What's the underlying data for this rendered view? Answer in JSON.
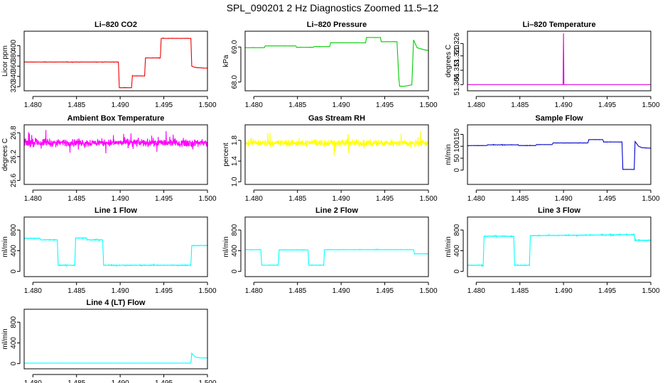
{
  "title": "SPL_090201  2 Hz Diagnostics Zoomed 11.5–12",
  "chart_data": [
    {
      "type": "line",
      "title": "Li–820 CO2",
      "ylabel": "Licor ppm",
      "color": "#ee0000",
      "xlim": [
        1.479,
        1.5
      ],
      "ylim": [
        312,
        428
      ],
      "xticks": [
        "1.480",
        "1.485",
        "1.490",
        "1.495",
        "1.500"
      ],
      "yticks": [
        "320",
        "340",
        "360",
        "380",
        "400"
      ],
      "x": [
        1.479,
        1.4898,
        1.4899,
        1.4913,
        1.4914,
        1.4928,
        1.4929,
        1.4946,
        1.4947,
        1.4981,
        1.4982,
        1.4985,
        1.4988,
        1.5
      ],
      "y": [
        368,
        368,
        318,
        318,
        341,
        341,
        376,
        376,
        414,
        414,
        360,
        358,
        357,
        356
      ],
      "noise": 0.8
    },
    {
      "type": "line",
      "title": "Li–820 Pressure",
      "ylabel": "kPa",
      "color": "#00cc00",
      "xlim": [
        1.479,
        1.5
      ],
      "ylim": [
        67.75,
        69.45
      ],
      "xticks": [
        "1.480",
        "1.485",
        "1.490",
        "1.495",
        "1.500"
      ],
      "yticks": [
        "68.0",
        "69.0"
      ],
      "x": [
        1.479,
        1.4812,
        1.4813,
        1.4848,
        1.4849,
        1.4868,
        1.4869,
        1.4887,
        1.4888,
        1.4928,
        1.4929,
        1.4945,
        1.4946,
        1.4964,
        1.4966,
        1.4967,
        1.4973,
        1.4981,
        1.4983,
        1.4987,
        1.4995,
        1.5
      ],
      "y": [
        68.98,
        68.98,
        69.03,
        69.03,
        68.99,
        68.99,
        69.01,
        69.01,
        69.12,
        69.12,
        69.27,
        69.27,
        69.15,
        69.15,
        68.15,
        67.88,
        67.88,
        67.92,
        69.2,
        68.98,
        68.92,
        68.9
      ],
      "noise": 0.006
    },
    {
      "type": "line",
      "title": "Li–820 Temperature",
      "ylabel": "degrees C",
      "color": "#dd00dd",
      "xlim": [
        1.479,
        1.5
      ],
      "ylim": [
        51.303,
        51.332
      ],
      "xticks": [
        "1.480",
        "1.485",
        "1.490",
        "1.495",
        "1.500"
      ],
      "yticks": [
        "51.306",
        "51.313",
        "51.320",
        "51.326"
      ],
      "x": [
        1.479,
        1.48995,
        1.49,
        1.49005,
        1.5
      ],
      "y": [
        51.306,
        51.306,
        51.331,
        51.306,
        51.306
      ],
      "noise": 0
    },
    {
      "type": "line",
      "title": "Ambient Box Temperature",
      "ylabel": "degrees C",
      "color": "#ff00ff",
      "xlim": [
        1.479,
        1.5
      ],
      "ylim": [
        25.5,
        27.0
      ],
      "xticks": [
        "1.480",
        "1.485",
        "1.490",
        "1.495",
        "1.500"
      ],
      "yticks": [
        "25.6",
        "26.2",
        "26.8"
      ],
      "x": [
        1.479,
        1.5
      ],
      "y": [
        26.55,
        26.55
      ],
      "noise": 0.32
    },
    {
      "type": "line",
      "title": "Gas Stream RH",
      "ylabel": "percent",
      "color": "#ffff00",
      "xlim": [
        1.479,
        1.5
      ],
      "ylim": [
        0.95,
        2.1
      ],
      "xticks": [
        "1.480",
        "1.485",
        "1.490",
        "1.495",
        "1.500"
      ],
      "yticks": [
        "1.0",
        "1.4",
        "1.8"
      ],
      "x": [
        1.479,
        1.5
      ],
      "y": [
        1.75,
        1.75
      ],
      "noise": 0.22
    },
    {
      "type": "line",
      "title": "Sample Flow",
      "ylabel": "ml/min",
      "color": "#0000cc",
      "xlim": [
        1.479,
        1.5
      ],
      "ylim": [
        -60,
        190
      ],
      "xticks": [
        "1.480",
        "1.485",
        "1.490",
        "1.495",
        "1.500"
      ],
      "yticks": [
        "0",
        "50",
        "100",
        "150"
      ],
      "x": [
        1.479,
        1.4812,
        1.4813,
        1.4848,
        1.4849,
        1.4868,
        1.4869,
        1.4887,
        1.4888,
        1.4928,
        1.4929,
        1.4945,
        1.4946,
        1.4967,
        1.4968,
        1.4981,
        1.4982,
        1.4986,
        1.499,
        1.5
      ],
      "y": [
        103,
        103,
        106,
        106,
        103,
        103,
        107,
        107,
        114,
        114,
        128,
        128,
        118,
        118,
        3,
        3,
        120,
        100,
        94,
        92
      ],
      "noise": 1.2
    },
    {
      "type": "line",
      "title": "Line 1 Flow",
      "ylabel": "ml/min",
      "color": "#00ffff",
      "xlim": [
        1.479,
        1.5
      ],
      "ylim": [
        -100,
        1050
      ],
      "xticks": [
        "1.480",
        "1.485",
        "1.490",
        "1.495",
        "1.500"
      ],
      "yticks": [
        "0",
        "400",
        "800"
      ],
      "x": [
        1.479,
        1.4808,
        1.4809,
        1.4828,
        1.4829,
        1.4848,
        1.4849,
        1.4861,
        1.4862,
        1.488,
        1.4881,
        1.4981,
        1.4982,
        1.5
      ],
      "y": [
        640,
        640,
        610,
        610,
        120,
        120,
        645,
        645,
        610,
        610,
        120,
        120,
        500,
        500
      ],
      "noise": 18
    },
    {
      "type": "line",
      "title": "Line 2 Flow",
      "ylabel": "ml/min",
      "color": "#00ffff",
      "xlim": [
        1.479,
        1.5
      ],
      "ylim": [
        -100,
        1050
      ],
      "xticks": [
        "1.480",
        "1.485",
        "1.490",
        "1.495",
        "1.500"
      ],
      "yticks": [
        "0",
        "400",
        "800"
      ],
      "x": [
        1.479,
        1.4808,
        1.4809,
        1.4828,
        1.4829,
        1.4862,
        1.4863,
        1.488,
        1.4881,
        1.4983,
        1.4984,
        1.5
      ],
      "y": [
        420,
        420,
        120,
        120,
        415,
        415,
        120,
        120,
        420,
        420,
        340,
        340
      ],
      "noise": 10
    },
    {
      "type": "line",
      "title": "Line 3 Flow",
      "ylabel": "ml/min",
      "color": "#00ffff",
      "xlim": [
        1.479,
        1.5
      ],
      "ylim": [
        -100,
        1050
      ],
      "xticks": [
        "1.480",
        "1.485",
        "1.490",
        "1.495",
        "1.500"
      ],
      "yticks": [
        "0",
        "400",
        "800"
      ],
      "x": [
        1.479,
        1.4808,
        1.4809,
        1.4843,
        1.4844,
        1.4861,
        1.4862,
        1.4981,
        1.4982,
        1.5
      ],
      "y": [
        120,
        120,
        680,
        680,
        120,
        120,
        690,
        710,
        600,
        600
      ],
      "noise": 20
    },
    {
      "type": "line",
      "title": "Line 4 (LT) Flow",
      "ylabel": "ml/min",
      "color": "#00ffff",
      "xlim": [
        1.479,
        1.5
      ],
      "ylim": [
        -100,
        1050
      ],
      "xticks": [
        "1.480",
        "1.485",
        "1.490",
        "1.495",
        "1.500"
      ],
      "yticks": [
        "0",
        "400",
        "800"
      ],
      "x": [
        1.479,
        1.4981,
        1.4982,
        1.4986,
        1.4992,
        1.5
      ],
      "y": [
        10,
        10,
        200,
        130,
        110,
        110
      ],
      "noise": 2
    }
  ]
}
